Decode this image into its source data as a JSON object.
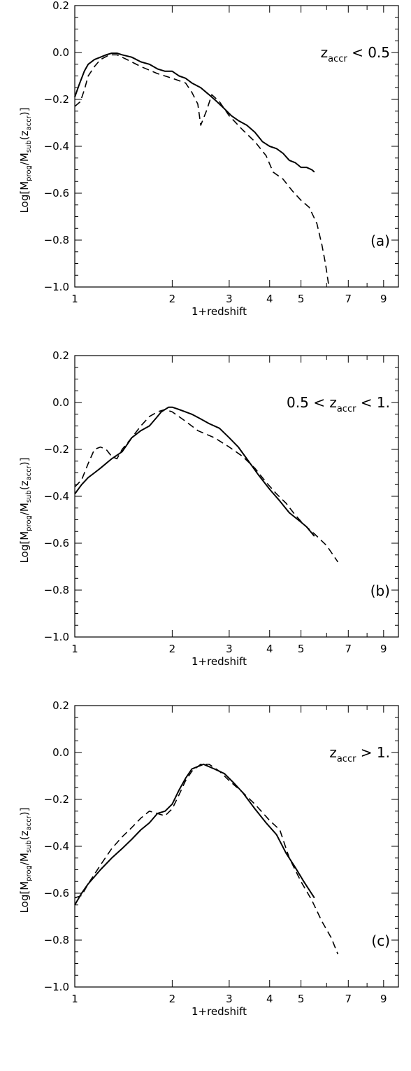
{
  "chart_data": [
    {
      "type": "line",
      "panel_label": "(a)",
      "annotation": {
        "pre": "",
        "var": "z",
        "sub": "accr",
        "post": " < 0.5"
      },
      "xlabel": "1+redshift",
      "ylabel": {
        "pre": "Log[M",
        "s1": "prog",
        "mid": "/M",
        "s2": "sub",
        "mid2": "(z",
        "s3": "accr",
        "post": ")]"
      },
      "xlim": [
        1,
        10
      ],
      "xscale": "log",
      "ylim": [
        -1.0,
        0.2
      ],
      "xticks": [
        1,
        2,
        3,
        4,
        5,
        7,
        9
      ],
      "yticks": [
        "0.2",
        "0.0",
        "-0.2",
        "-0.4",
        "-0.6",
        "-0.8",
        "-1.0"
      ],
      "series": [
        {
          "style": "solid",
          "points": [
            [
              1.0,
              -0.19
            ],
            [
              1.03,
              -0.14
            ],
            [
              1.07,
              -0.08
            ],
            [
              1.1,
              -0.05
            ],
            [
              1.15,
              -0.03
            ],
            [
              1.2,
              -0.02
            ],
            [
              1.25,
              -0.01
            ],
            [
              1.3,
              -0.003
            ],
            [
              1.35,
              -0.003
            ],
            [
              1.4,
              -0.01
            ],
            [
              1.5,
              -0.02
            ],
            [
              1.6,
              -0.04
            ],
            [
              1.7,
              -0.05
            ],
            [
              1.8,
              -0.07
            ],
            [
              1.9,
              -0.08
            ],
            [
              2.0,
              -0.08
            ],
            [
              2.1,
              -0.1
            ],
            [
              2.2,
              -0.11
            ],
            [
              2.3,
              -0.13
            ],
            [
              2.45,
              -0.15
            ],
            [
              2.6,
              -0.18
            ],
            [
              2.75,
              -0.21
            ],
            [
              2.9,
              -0.24
            ],
            [
              3.05,
              -0.27
            ],
            [
              3.2,
              -0.29
            ],
            [
              3.4,
              -0.31
            ],
            [
              3.6,
              -0.34
            ],
            [
              3.8,
              -0.38
            ],
            [
              4.0,
              -0.4
            ],
            [
              4.2,
              -0.41
            ],
            [
              4.4,
              -0.43
            ],
            [
              4.6,
              -0.46
            ],
            [
              4.8,
              -0.47
            ],
            [
              5.0,
              -0.49
            ],
            [
              5.2,
              -0.49
            ],
            [
              5.4,
              -0.5
            ],
            [
              5.5,
              -0.51
            ]
          ]
        },
        {
          "style": "dashed",
          "points": [
            [
              1.0,
              -0.23
            ],
            [
              1.04,
              -0.21
            ],
            [
              1.07,
              -0.16
            ],
            [
              1.1,
              -0.1
            ],
            [
              1.15,
              -0.06
            ],
            [
              1.2,
              -0.03
            ],
            [
              1.28,
              -0.01
            ],
            [
              1.35,
              -0.01
            ],
            [
              1.45,
              -0.03
            ],
            [
              1.6,
              -0.06
            ],
            [
              1.8,
              -0.09
            ],
            [
              2.0,
              -0.11
            ],
            [
              2.2,
              -0.13
            ],
            [
              2.3,
              -0.17
            ],
            [
              2.4,
              -0.22
            ],
            [
              2.45,
              -0.31
            ],
            [
              2.55,
              -0.25
            ],
            [
              2.65,
              -0.18
            ],
            [
              2.8,
              -0.21
            ],
            [
              3.0,
              -0.27
            ],
            [
              3.3,
              -0.33
            ],
            [
              3.6,
              -0.38
            ],
            [
              3.9,
              -0.44
            ],
            [
              4.1,
              -0.51
            ],
            [
              4.4,
              -0.54
            ],
            [
              4.7,
              -0.59
            ],
            [
              5.0,
              -0.63
            ],
            [
              5.3,
              -0.66
            ],
            [
              5.6,
              -0.73
            ],
            [
              5.8,
              -0.82
            ],
            [
              5.95,
              -0.9
            ],
            [
              6.1,
              -1.0
            ]
          ]
        }
      ]
    },
    {
      "type": "line",
      "panel_label": "(b)",
      "annotation": {
        "pre": "0.5 < ",
        "var": "z",
        "sub": "accr",
        "post": " < 1."
      },
      "xlabel": "1+redshift",
      "ylabel": {
        "pre": "Log[M",
        "s1": "prog",
        "mid": "/M",
        "s2": "sub",
        "mid2": "(z",
        "s3": "accr",
        "post": ")]"
      },
      "xlim": [
        1,
        10
      ],
      "xscale": "log",
      "ylim": [
        -1.0,
        0.2
      ],
      "xticks": [
        1,
        2,
        3,
        4,
        5,
        7,
        9
      ],
      "yticks": [
        "0.2",
        "0.0",
        "-0.2",
        "-0.4",
        "-0.6",
        "-0.8",
        "-1.0"
      ],
      "series": [
        {
          "style": "solid",
          "points": [
            [
              1.0,
              -0.39
            ],
            [
              1.05,
              -0.35
            ],
            [
              1.1,
              -0.32
            ],
            [
              1.15,
              -0.3
            ],
            [
              1.2,
              -0.28
            ],
            [
              1.3,
              -0.24
            ],
            [
              1.4,
              -0.21
            ],
            [
              1.45,
              -0.18
            ],
            [
              1.5,
              -0.15
            ],
            [
              1.6,
              -0.12
            ],
            [
              1.7,
              -0.1
            ],
            [
              1.8,
              -0.06
            ],
            [
              1.85,
              -0.04
            ],
            [
              1.95,
              -0.02
            ],
            [
              2.0,
              -0.02
            ],
            [
              2.1,
              -0.03
            ],
            [
              2.2,
              -0.04
            ],
            [
              2.3,
              -0.05
            ],
            [
              2.45,
              -0.07
            ],
            [
              2.6,
              -0.09
            ],
            [
              2.8,
              -0.11
            ],
            [
              3.0,
              -0.15
            ],
            [
              3.2,
              -0.19
            ],
            [
              3.4,
              -0.24
            ],
            [
              3.7,
              -0.31
            ],
            [
              4.0,
              -0.37
            ],
            [
              4.3,
              -0.42
            ],
            [
              4.6,
              -0.47
            ],
            [
              5.0,
              -0.51
            ],
            [
              5.2,
              -0.53
            ],
            [
              5.5,
              -0.57
            ]
          ]
        },
        {
          "style": "dashed",
          "points": [
            [
              1.0,
              -0.36
            ],
            [
              1.05,
              -0.33
            ],
            [
              1.1,
              -0.26
            ],
            [
              1.15,
              -0.2
            ],
            [
              1.2,
              -0.19
            ],
            [
              1.25,
              -0.2
            ],
            [
              1.3,
              -0.23
            ],
            [
              1.35,
              -0.24
            ],
            [
              1.4,
              -0.2
            ],
            [
              1.5,
              -0.15
            ],
            [
              1.6,
              -0.1
            ],
            [
              1.7,
              -0.06
            ],
            [
              1.8,
              -0.04
            ],
            [
              1.9,
              -0.03
            ],
            [
              2.0,
              -0.04
            ],
            [
              2.2,
              -0.08
            ],
            [
              2.4,
              -0.12
            ],
            [
              2.7,
              -0.15
            ],
            [
              3.0,
              -0.19
            ],
            [
              3.3,
              -0.23
            ],
            [
              3.6,
              -0.28
            ],
            [
              3.9,
              -0.34
            ],
            [
              4.2,
              -0.39
            ],
            [
              4.5,
              -0.43
            ],
            [
              4.8,
              -0.48
            ],
            [
              5.1,
              -0.52
            ],
            [
              5.5,
              -0.56
            ],
            [
              6.0,
              -0.61
            ],
            [
              6.5,
              -0.68
            ]
          ]
        }
      ]
    },
    {
      "type": "line",
      "panel_label": "(c)",
      "annotation": {
        "pre": "",
        "var": "z",
        "sub": "accr",
        "post": " > 1."
      },
      "xlabel": "1+redshift",
      "ylabel": {
        "pre": "Log[M",
        "s1": "prog",
        "mid": "/M",
        "s2": "sub",
        "mid2": "(z",
        "s3": "accr",
        "post": ")]"
      },
      "xlim": [
        1,
        10
      ],
      "xscale": "log",
      "ylim": [
        -1.0,
        0.2
      ],
      "xticks": [
        1,
        2,
        3,
        4,
        5,
        7,
        9
      ],
      "yticks": [
        "0.2",
        "0.0",
        "-0.2",
        "-0.4",
        "-0.6",
        "-0.8",
        "-1.0"
      ],
      "series": [
        {
          "style": "solid",
          "points": [
            [
              1.0,
              -0.65
            ],
            [
              1.05,
              -0.6
            ],
            [
              1.1,
              -0.56
            ],
            [
              1.15,
              -0.53
            ],
            [
              1.2,
              -0.5
            ],
            [
              1.3,
              -0.45
            ],
            [
              1.4,
              -0.41
            ],
            [
              1.5,
              -0.37
            ],
            [
              1.6,
              -0.33
            ],
            [
              1.7,
              -0.3
            ],
            [
              1.8,
              -0.26
            ],
            [
              1.9,
              -0.25
            ],
            [
              2.0,
              -0.22
            ],
            [
              2.1,
              -0.16
            ],
            [
              2.2,
              -0.11
            ],
            [
              2.3,
              -0.07
            ],
            [
              2.4,
              -0.06
            ],
            [
              2.5,
              -0.05
            ],
            [
              2.7,
              -0.07
            ],
            [
              2.9,
              -0.09
            ],
            [
              3.1,
              -0.13
            ],
            [
              3.3,
              -0.17
            ],
            [
              3.6,
              -0.24
            ],
            [
              3.9,
              -0.3
            ],
            [
              4.2,
              -0.35
            ],
            [
              4.5,
              -0.43
            ],
            [
              4.8,
              -0.49
            ],
            [
              5.1,
              -0.55
            ],
            [
              5.5,
              -0.62
            ]
          ]
        },
        {
          "style": "dashed",
          "points": [
            [
              1.0,
              -0.62
            ],
            [
              1.05,
              -0.61
            ],
            [
              1.1,
              -0.56
            ],
            [
              1.2,
              -0.48
            ],
            [
              1.3,
              -0.41
            ],
            [
              1.4,
              -0.36
            ],
            [
              1.5,
              -0.32
            ],
            [
              1.6,
              -0.28
            ],
            [
              1.7,
              -0.25
            ],
            [
              1.8,
              -0.26
            ],
            [
              1.9,
              -0.27
            ],
            [
              2.0,
              -0.24
            ],
            [
              2.1,
              -0.18
            ],
            [
              2.2,
              -0.12
            ],
            [
              2.3,
              -0.08
            ],
            [
              2.45,
              -0.05
            ],
            [
              2.6,
              -0.05
            ],
            [
              2.8,
              -0.08
            ],
            [
              3.0,
              -0.12
            ],
            [
              3.3,
              -0.17
            ],
            [
              3.6,
              -0.22
            ],
            [
              4.0,
              -0.29
            ],
            [
              4.3,
              -0.33
            ],
            [
              4.6,
              -0.45
            ],
            [
              5.0,
              -0.55
            ],
            [
              5.4,
              -0.63
            ],
            [
              5.8,
              -0.72
            ],
            [
              6.2,
              -0.79
            ],
            [
              6.5,
              -0.86
            ]
          ]
        }
      ]
    }
  ]
}
